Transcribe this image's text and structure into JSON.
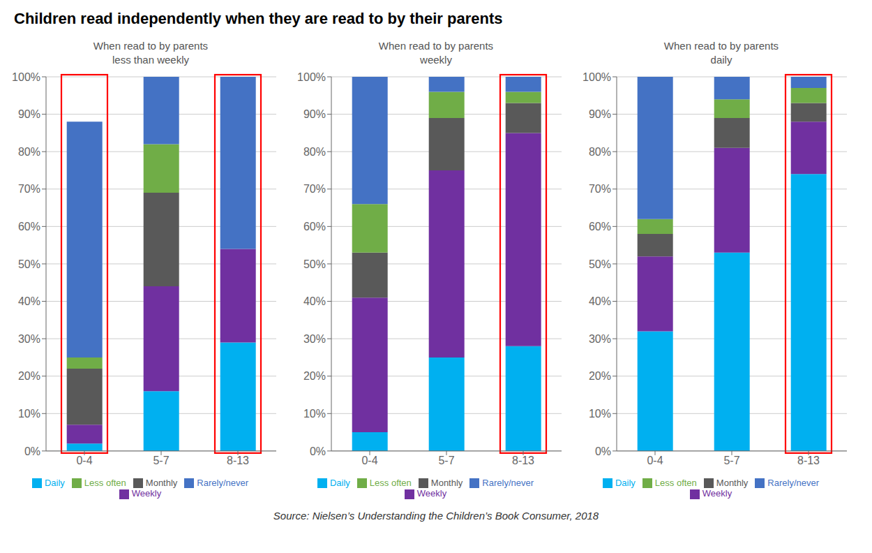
{
  "title": "Children read independently when they are read to by their parents",
  "source": "Source: Nielsen’s Understanding the Children’s Book Consumer, 2018",
  "chart_data": [
    {
      "type": "bar",
      "title": "When read to by parents\nless than weekly",
      "stacked": true,
      "grid": true,
      "legend": "bottom",
      "categories": [
        "0-4",
        "5-7",
        "8-13"
      ],
      "series": [
        {
          "name": "Daily",
          "color": "#00B0F0",
          "values": [
            2,
            16,
            29
          ]
        },
        {
          "name": "Weekly",
          "color": "#7030A0",
          "values": [
            5,
            28,
            25
          ]
        },
        {
          "name": "Monthly",
          "color": "#595959",
          "values": [
            15,
            25,
            0
          ]
        },
        {
          "name": "Less often",
          "color": "#70AD47",
          "values": [
            3,
            13,
            0
          ]
        },
        {
          "name": "Rarely/never",
          "color": "#4472C4",
          "values": [
            63,
            18,
            46
          ]
        }
      ],
      "ylim": [
        0,
        100
      ],
      "yticks": [
        {
          "value": 0,
          "label": "0%"
        },
        {
          "value": 10,
          "label": "10%"
        },
        {
          "value": 20,
          "label": "20%"
        },
        {
          "value": 30,
          "label": "30%"
        },
        {
          "value": 40,
          "label": "40%"
        },
        {
          "value": 50,
          "label": "50%"
        },
        {
          "value": 60,
          "label": "60%"
        },
        {
          "value": 70,
          "label": "70%"
        },
        {
          "value": 80,
          "label": "80%"
        },
        {
          "value": 90,
          "label": "90%"
        },
        {
          "value": 100,
          "label": "100%"
        }
      ],
      "highlight": {
        "categories": [
          "0-4",
          "8-13"
        ],
        "color": "#FF0000"
      }
    },
    {
      "type": "bar",
      "title": "When read to by parents\nweekly",
      "stacked": true,
      "grid": true,
      "legend": "bottom",
      "categories": [
        "0-4",
        "5-7",
        "8-13"
      ],
      "series": [
        {
          "name": "Daily",
          "color": "#00B0F0",
          "values": [
            5,
            25,
            28
          ]
        },
        {
          "name": "Weekly",
          "color": "#7030A0",
          "values": [
            36,
            50,
            57
          ]
        },
        {
          "name": "Monthly",
          "color": "#595959",
          "values": [
            12,
            14,
            8
          ]
        },
        {
          "name": "Less often",
          "color": "#70AD47",
          "values": [
            13,
            7,
            3
          ]
        },
        {
          "name": "Rarely/never",
          "color": "#4472C4",
          "values": [
            34,
            4,
            4
          ]
        }
      ],
      "ylim": [
        0,
        100
      ],
      "yticks": [
        {
          "value": 0,
          "label": "0%"
        },
        {
          "value": 10,
          "label": "10%"
        },
        {
          "value": 20,
          "label": "20%"
        },
        {
          "value": 30,
          "label": "30%"
        },
        {
          "value": 40,
          "label": "40%"
        },
        {
          "value": 50,
          "label": "50%"
        },
        {
          "value": 60,
          "label": "60%"
        },
        {
          "value": 70,
          "label": "70%"
        },
        {
          "value": 80,
          "label": "80%"
        },
        {
          "value": 90,
          "label": "90%"
        },
        {
          "value": 100,
          "label": "100%"
        }
      ],
      "highlight": {
        "categories": [
          "8-13"
        ],
        "color": "#FF0000"
      }
    },
    {
      "type": "bar",
      "title": "When read to by parents\ndaily",
      "stacked": true,
      "grid": true,
      "legend": "bottom",
      "categories": [
        "0-4",
        "5-7",
        "8-13"
      ],
      "series": [
        {
          "name": "Daily",
          "color": "#00B0F0",
          "values": [
            32,
            53,
            74
          ]
        },
        {
          "name": "Weekly",
          "color": "#7030A0",
          "values": [
            20,
            28,
            14
          ]
        },
        {
          "name": "Monthly",
          "color": "#595959",
          "values": [
            6,
            8,
            5
          ]
        },
        {
          "name": "Less often",
          "color": "#70AD47",
          "values": [
            4,
            5,
            4
          ]
        },
        {
          "name": "Rarely/never",
          "color": "#4472C4",
          "values": [
            38,
            6,
            3
          ]
        }
      ],
      "ylim": [
        0,
        100
      ],
      "yticks": [
        {
          "value": 0,
          "label": "0%"
        },
        {
          "value": 10,
          "label": "10%"
        },
        {
          "value": 20,
          "label": "20%"
        },
        {
          "value": 30,
          "label": "30%"
        },
        {
          "value": 40,
          "label": "40%"
        },
        {
          "value": 50,
          "label": "50%"
        },
        {
          "value": 60,
          "label": "60%"
        },
        {
          "value": 70,
          "label": "70%"
        },
        {
          "value": 80,
          "label": "80%"
        },
        {
          "value": 90,
          "label": "90%"
        },
        {
          "value": 100,
          "label": "100%"
        }
      ],
      "highlight": {
        "categories": [
          "8-13"
        ],
        "color": "#FF0000"
      }
    }
  ]
}
